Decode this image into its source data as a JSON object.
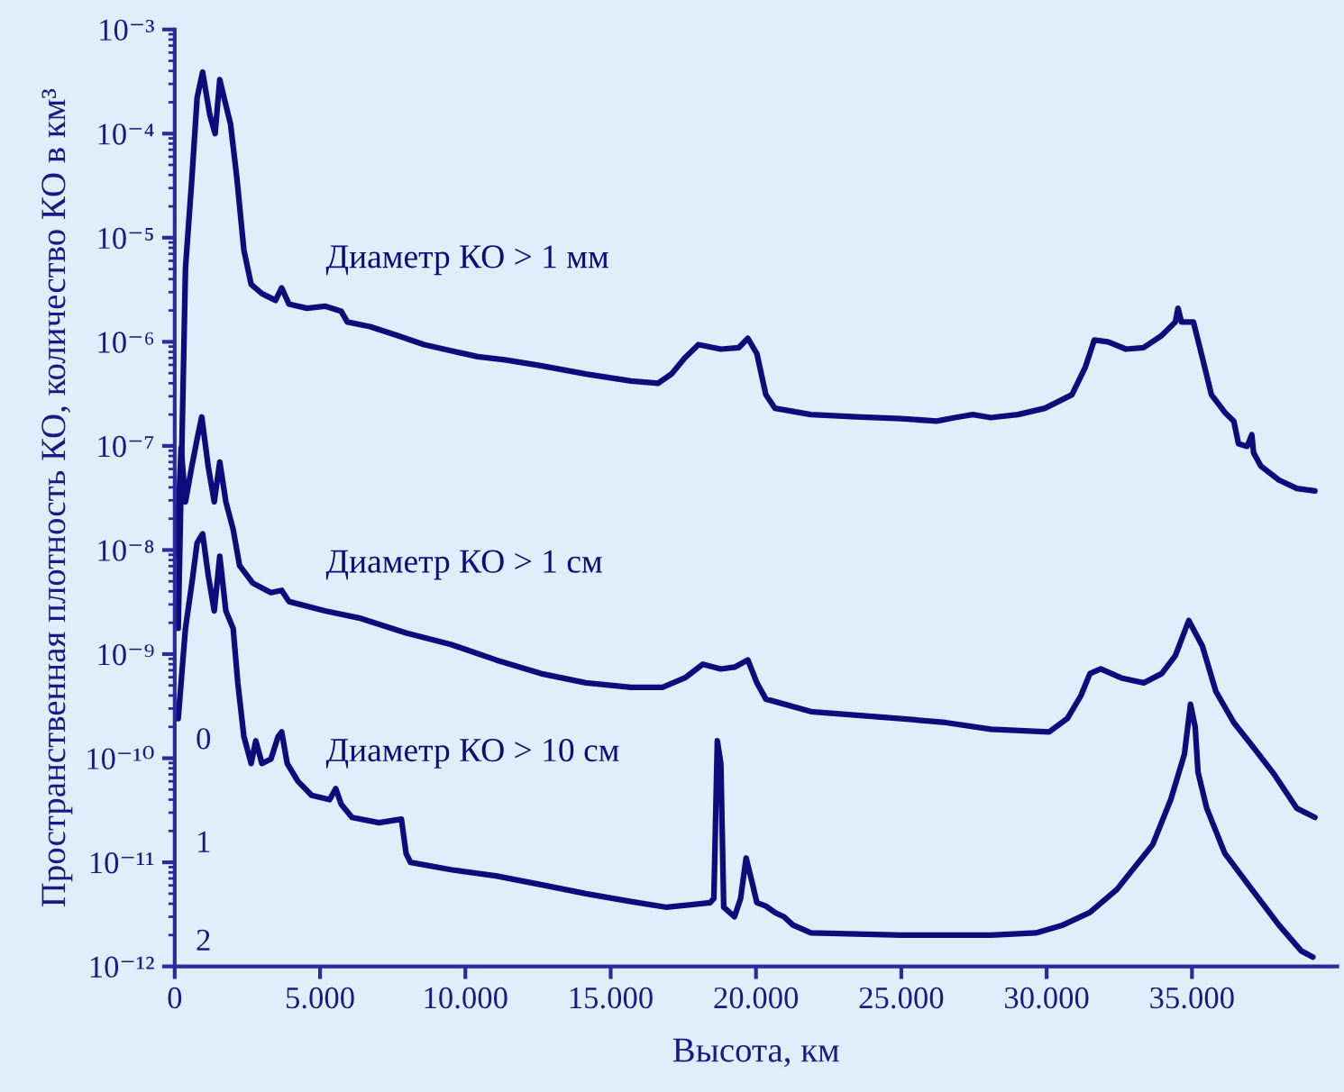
{
  "chart_data": {
    "type": "line",
    "xlabel": "Высота, км",
    "ylabel": "Пространственная плотность КО, количество КО в км³",
    "log": "y",
    "grid": false,
    "legend": false,
    "marker": "none",
    "line_style": "solid",
    "xlim": [
      0,
      40000
    ],
    "ylim": [
      1e-12,
      0.001
    ],
    "xticks": [
      0,
      {
        "value": 5000,
        "label": "5.000"
      },
      {
        "value": 10000,
        "label": "10.000"
      },
      {
        "value": 15000,
        "label": "15.000"
      },
      {
        "value": 20000,
        "label": "20.000"
      },
      {
        "value": 25000,
        "label": "25.000"
      },
      {
        "value": 30000,
        "label": "30.000"
      },
      {
        "value": 35000,
        "label": "35.000"
      }
    ],
    "yticks": [
      {
        "value": 1e-12,
        "label": "10⁻¹²"
      },
      {
        "value": 1e-11,
        "label": "10⁻¹¹"
      },
      {
        "value": 1e-10,
        "label": "10⁻¹⁰"
      },
      {
        "value": 1e-09,
        "label": "10⁻⁹"
      },
      {
        "value": 1e-08,
        "label": "10⁻⁸"
      },
      {
        "value": 1e-07,
        "label": "10⁻⁷"
      },
      {
        "value": 1e-06,
        "label": "10⁻⁶"
      },
      {
        "value": 1e-05,
        "label": "10⁻⁵"
      },
      {
        "value": 0.0001,
        "label": "10⁻⁴"
      },
      {
        "value": 0.001,
        "label": "10⁻³"
      }
    ],
    "annotations": [
      "0",
      "1",
      "2"
    ],
    "series": [
      {
        "name": "Диаметр КО > 1 мм",
        "color": "#0c0c7c",
        "x": [
          120,
          370,
          590,
          770,
          960,
          1210,
          1390,
          1550,
          1700,
          1920,
          2140,
          2380,
          2630,
          3000,
          3470,
          3680,
          3930,
          4550,
          5170,
          5730,
          5940,
          6720,
          7650,
          8580,
          9500,
          10430,
          11360,
          12600,
          14150,
          15700,
          16630,
          17090,
          17550,
          18020,
          18790,
          19410,
          19720,
          20030,
          20340,
          20650,
          21890,
          23440,
          24990,
          26220,
          26840,
          27460,
          28080,
          29010,
          29940,
          30870,
          31330,
          31640,
          32110,
          32730,
          33340,
          33960,
          34430,
          34520,
          34640,
          35050,
          35360,
          35670,
          36130,
          36440,
          36600,
          36900,
          37060,
          37120,
          37370,
          37990,
          38610,
          39230
        ],
        "values": [
          1.77e-09,
          5.1e-06,
          3.7e-05,
          0.00022,
          0.00039,
          0.00015,
          0.0001,
          0.00033,
          0.00022,
          0.000124,
          3.7e-05,
          7.6e-06,
          3.56e-06,
          2.9e-06,
          2.5e-06,
          3.3e-06,
          2.3e-06,
          2.1e-06,
          2.2e-06,
          1.96e-06,
          1.55e-06,
          1.4e-06,
          1.15e-06,
          9.4e-07,
          8.2e-07,
          7.2e-07,
          6.7e-07,
          5.9e-07,
          4.9e-07,
          4.2e-07,
          4e-07,
          4.9e-07,
          7e-07,
          9.4e-07,
          8.5e-07,
          8.8e-07,
          1.08e-06,
          7.7e-07,
          3.1e-07,
          2.3e-07,
          2e-07,
          1.9e-07,
          1.83e-07,
          1.73e-07,
          1.87e-07,
          2e-07,
          1.87e-07,
          2e-07,
          2.3e-07,
          3.1e-07,
          5.7e-07,
          1.04e-06,
          1e-06,
          8.5e-07,
          8.8e-07,
          1.15e-06,
          1.55e-06,
          2.1e-06,
          1.55e-06,
          1.55e-06,
          7e-07,
          3.1e-07,
          2.1e-07,
          1.73e-07,
          1.05e-07,
          9.9e-08,
          1.28e-07,
          8.6e-08,
          6.4e-08,
          4.7e-08,
          3.9e-08,
          3.7e-08
        ]
      },
      {
        "name": "Диаметр КО > 1 см",
        "color": "#0c0c7c",
        "x": [
          60,
          220,
          370,
          590,
          770,
          930,
          1150,
          1360,
          1550,
          1760,
          2010,
          2230,
          2690,
          3310,
          3680,
          3930,
          5170,
          6410,
          7960,
          9500,
          11050,
          12600,
          14150,
          15700,
          16780,
          17550,
          18170,
          18790,
          19260,
          19720,
          20030,
          20340,
          21890,
          24990,
          26530,
          28080,
          30090,
          30710,
          31180,
          31490,
          31860,
          32570,
          33340,
          33960,
          34430,
          34890,
          35360,
          35820,
          36440,
          37060,
          37830,
          38610,
          39230
        ],
        "values": [
          8.7e-09,
          9.5e-08,
          2.9e-08,
          6.4e-08,
          1.16e-07,
          1.9e-07,
          6.4e-08,
          2.9e-08,
          7e-08,
          2.9e-08,
          1.58e-08,
          7.1e-09,
          4.8e-09,
          3.9e-09,
          4.1e-09,
          3.2e-09,
          2.6e-09,
          2.2e-09,
          1.6e-09,
          1.24e-09,
          8.8e-10,
          6.5e-10,
          5.3e-10,
          4.8e-10,
          4.8e-10,
          5.9e-10,
          8e-10,
          7.2e-10,
          7.5e-10,
          8.8e-10,
          5.3e-10,
          3.7e-10,
          2.8e-10,
          2.4e-10,
          2.2e-10,
          1.9e-10,
          1.79e-10,
          2.4e-10,
          4e-10,
          6.5e-10,
          7.2e-10,
          5.9e-10,
          5.3e-10,
          6.5e-10,
          9.7e-10,
          2.1e-09,
          1.19e-09,
          4.4e-10,
          2.2e-10,
          1.33e-10,
          7e-11,
          3.3e-11,
          2.7e-11
        ]
      },
      {
        "name": "Диаметр КО > 10 см",
        "color": "#0c0c7c",
        "x": [
          120,
          370,
          590,
          770,
          960,
          1150,
          1360,
          1550,
          1760,
          2010,
          2170,
          2380,
          2630,
          2790,
          3000,
          3310,
          3560,
          3680,
          3870,
          4240,
          4710,
          5330,
          5540,
          5730,
          6100,
          7030,
          7800,
          7960,
          8110,
          9500,
          11050,
          12600,
          14150,
          15700,
          16930,
          18420,
          18550,
          18670,
          18790,
          18890,
          19260,
          19470,
          19660,
          19850,
          20030,
          20340,
          20650,
          20960,
          21270,
          21890,
          24990,
          28080,
          29630,
          30560,
          31490,
          32420,
          33030,
          33650,
          34270,
          34740,
          34950,
          35110,
          35210,
          35510,
          36130,
          37060,
          37990,
          38760,
          39160
        ],
        "values": [
          2.4e-10,
          1.77e-09,
          4.8e-09,
          1.17e-08,
          1.43e-08,
          5.8e-09,
          2.6e-09,
          8.7e-09,
          2.6e-09,
          1.77e-09,
          5.3e-10,
          1.62e-10,
          8.9e-11,
          1.47e-10,
          8.9e-11,
          9.8e-11,
          1.62e-10,
          1.79e-10,
          8.9e-11,
          6e-11,
          4.4e-11,
          4e-11,
          5.1e-11,
          3.6e-11,
          2.7e-11,
          2.4e-11,
          2.6e-11,
          1.22e-11,
          1e-11,
          8.5e-12,
          7.4e-12,
          6.1e-12,
          5e-12,
          4.2e-12,
          3.7e-12,
          4.1e-12,
          4.5e-12,
          1.47e-10,
          8.9e-11,
          3.7e-12,
          3e-12,
          4.5e-12,
          1.1e-11,
          6.7e-12,
          4.1e-12,
          3.8e-12,
          3.3e-12,
          3e-12,
          2.5e-12,
          2.1e-12,
          2e-12,
          2e-12,
          2.1e-12,
          2.5e-12,
          3.3e-12,
          5.5e-12,
          9e-12,
          1.48e-11,
          4e-11,
          1.09e-10,
          3.3e-10,
          2e-10,
          7.3e-11,
          3.3e-11,
          1.22e-11,
          5.5e-12,
          2.5e-12,
          1.41e-12,
          1.23e-12
        ]
      }
    ]
  }
}
